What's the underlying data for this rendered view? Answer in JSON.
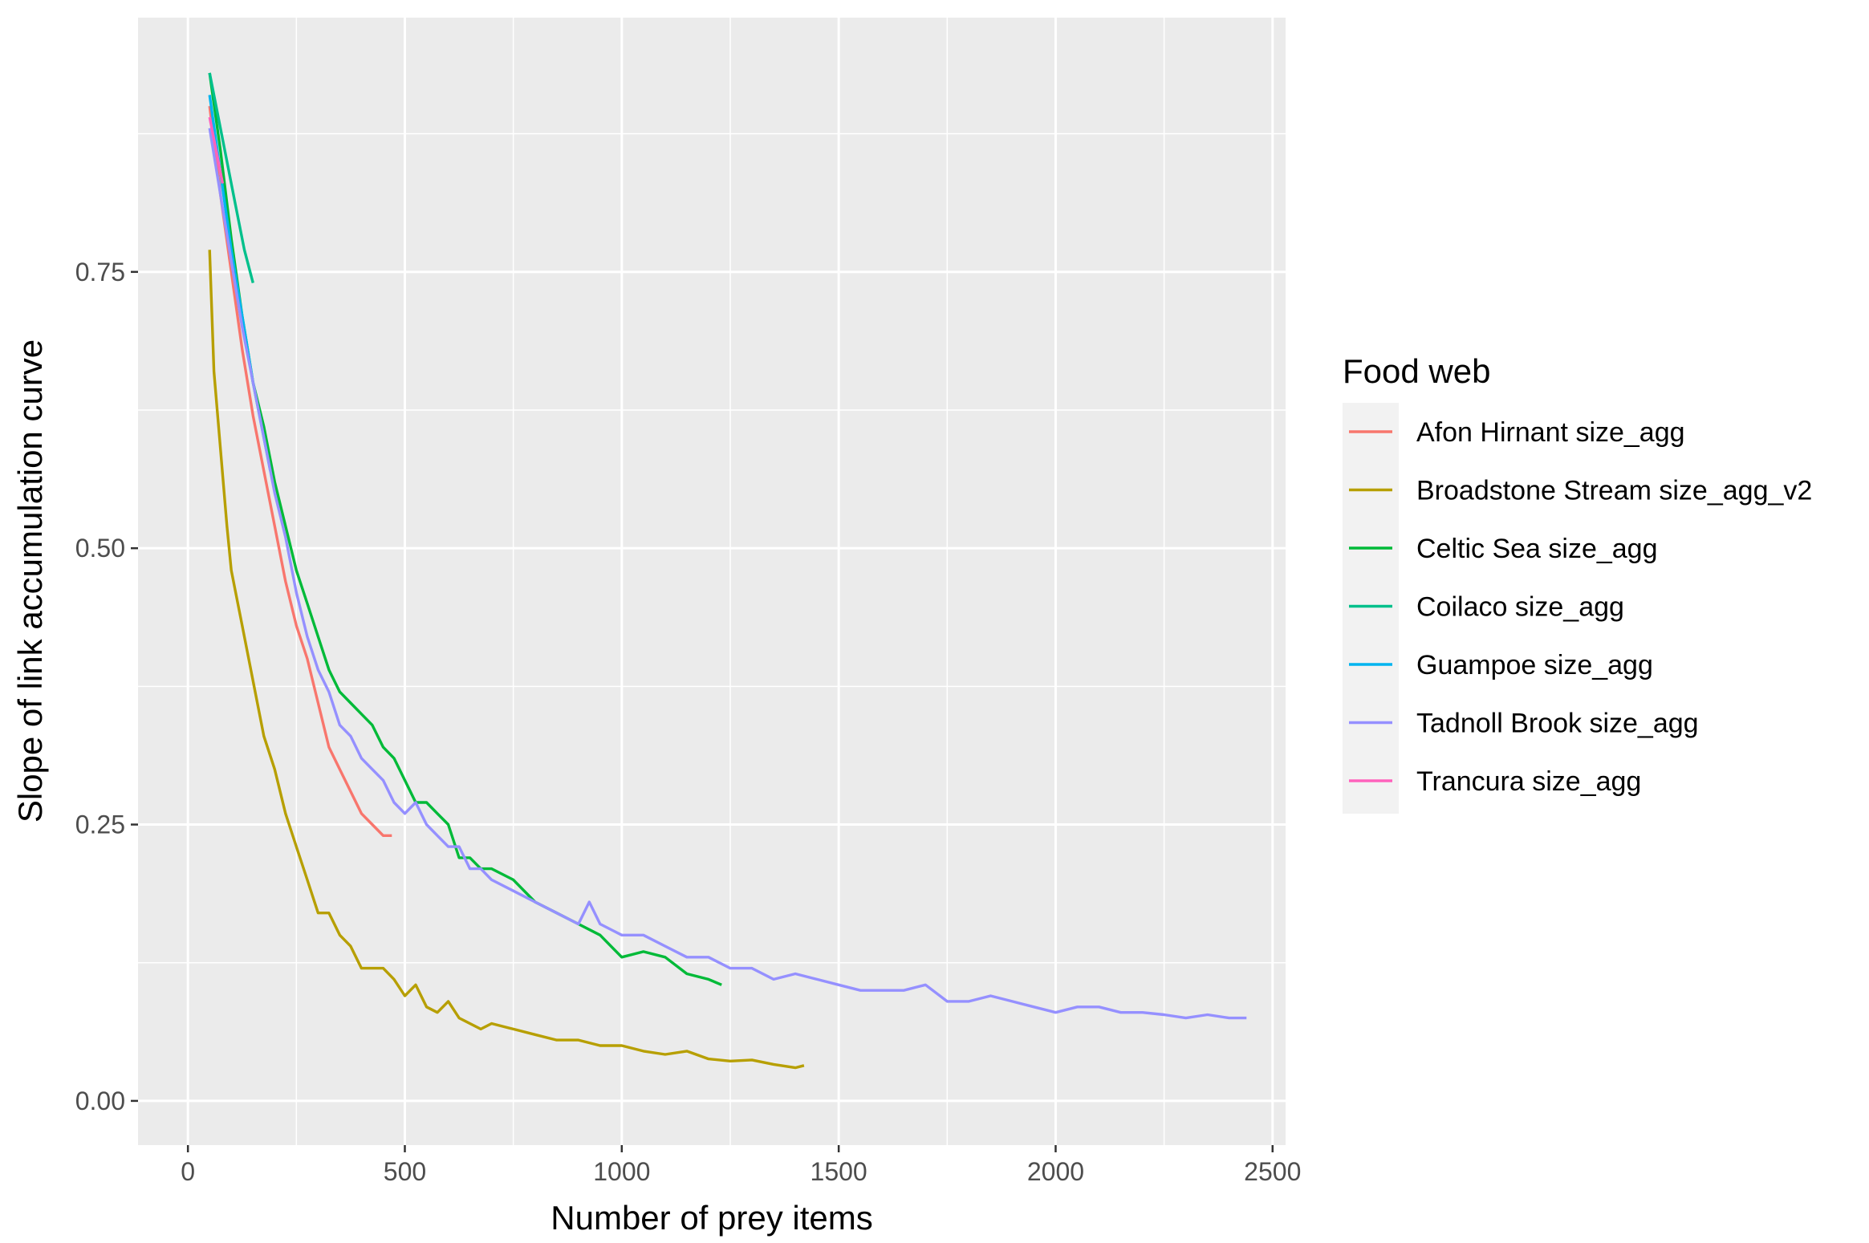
{
  "chart_data": {
    "type": "line",
    "xlabel": "Number of prey items",
    "ylabel": "Slope of link accumulation curve",
    "xlim": [
      -115,
      2530
    ],
    "ylim": [
      -0.04,
      0.98
    ],
    "x_ticks": [
      0,
      500,
      1000,
      1500,
      2000,
      2500
    ],
    "x_tick_labels": [
      "0",
      "500",
      "1000",
      "1500",
      "2000",
      "2500"
    ],
    "y_ticks": [
      0.0,
      0.25,
      0.5,
      0.75
    ],
    "y_tick_labels": [
      "0.00",
      "0.25",
      "0.50",
      "0.75"
    ],
    "grid": true,
    "legend": {
      "title": "Food web",
      "position": "right"
    },
    "series": [
      {
        "name": "Afon Hirnant size_agg",
        "color": "#F8766D",
        "x": [
          50,
          75,
          100,
          125,
          150,
          175,
          200,
          225,
          250,
          275,
          300,
          325,
          350,
          375,
          400,
          425,
          450,
          470
        ],
        "y": [
          0.9,
          0.82,
          0.75,
          0.68,
          0.62,
          0.57,
          0.52,
          0.47,
          0.43,
          0.4,
          0.36,
          0.32,
          0.3,
          0.28,
          0.26,
          0.25,
          0.24,
          0.24
        ]
      },
      {
        "name": "Broadstone Stream size_agg_v2",
        "color": "#B79F00",
        "x": [
          50,
          60,
          75,
          90,
          100,
          125,
          150,
          175,
          200,
          225,
          250,
          275,
          300,
          325,
          350,
          375,
          400,
          425,
          450,
          475,
          500,
          525,
          550,
          575,
          600,
          625,
          650,
          675,
          700,
          750,
          800,
          850,
          900,
          950,
          1000,
          1050,
          1100,
          1150,
          1200,
          1250,
          1300,
          1350,
          1400,
          1420
        ],
        "y": [
          0.77,
          0.66,
          0.59,
          0.52,
          0.48,
          0.43,
          0.38,
          0.33,
          0.3,
          0.26,
          0.23,
          0.2,
          0.17,
          0.17,
          0.15,
          0.14,
          0.12,
          0.12,
          0.12,
          0.11,
          0.095,
          0.105,
          0.085,
          0.08,
          0.09,
          0.075,
          0.07,
          0.065,
          0.07,
          0.065,
          0.06,
          0.055,
          0.055,
          0.05,
          0.05,
          0.045,
          0.042,
          0.045,
          0.038,
          0.036,
          0.037,
          0.033,
          0.03,
          0.032
        ]
      },
      {
        "name": "Celtic Sea size_agg",
        "color": "#00BA38",
        "x": [
          50,
          75,
          100,
          125,
          150,
          175,
          200,
          225,
          250,
          275,
          300,
          325,
          350,
          375,
          400,
          425,
          450,
          475,
          500,
          525,
          550,
          575,
          600,
          625,
          650,
          675,
          700,
          750,
          800,
          850,
          900,
          950,
          1000,
          1050,
          1100,
          1150,
          1200,
          1230
        ],
        "y": [
          0.93,
          0.86,
          0.78,
          0.71,
          0.65,
          0.61,
          0.56,
          0.52,
          0.48,
          0.45,
          0.42,
          0.39,
          0.37,
          0.36,
          0.35,
          0.34,
          0.32,
          0.31,
          0.29,
          0.27,
          0.27,
          0.26,
          0.25,
          0.22,
          0.22,
          0.21,
          0.21,
          0.2,
          0.18,
          0.17,
          0.16,
          0.15,
          0.13,
          0.135,
          0.13,
          0.115,
          0.11,
          0.105
        ]
      },
      {
        "name": "Coilaco size_agg",
        "color": "#00C08B",
        "x": [
          50,
          70,
          90,
          110,
          130,
          150
        ],
        "y": [
          0.93,
          0.89,
          0.85,
          0.81,
          0.77,
          0.74
        ]
      },
      {
        "name": "Guampoe size_agg",
        "color": "#00B4F0",
        "x": [
          50,
          75,
          100,
          125,
          150,
          175,
          190
        ],
        "y": [
          0.91,
          0.84,
          0.77,
          0.71,
          0.65,
          0.6,
          0.57
        ]
      },
      {
        "name": "Tadnoll Brook size_agg",
        "color": "#9590FF",
        "x": [
          50,
          75,
          100,
          125,
          150,
          175,
          200,
          225,
          250,
          275,
          300,
          325,
          350,
          375,
          400,
          425,
          450,
          475,
          500,
          525,
          550,
          575,
          600,
          625,
          650,
          675,
          700,
          750,
          800,
          850,
          900,
          925,
          950,
          1000,
          1050,
          1100,
          1150,
          1200,
          1250,
          1300,
          1350,
          1400,
          1450,
          1500,
          1550,
          1600,
          1650,
          1700,
          1750,
          1800,
          1850,
          1900,
          1950,
          2000,
          2050,
          2100,
          2150,
          2200,
          2250,
          2300,
          2350,
          2400,
          2440
        ],
        "y": [
          0.88,
          0.82,
          0.76,
          0.7,
          0.65,
          0.6,
          0.55,
          0.51,
          0.46,
          0.42,
          0.39,
          0.37,
          0.34,
          0.33,
          0.31,
          0.3,
          0.29,
          0.27,
          0.26,
          0.27,
          0.25,
          0.24,
          0.23,
          0.23,
          0.21,
          0.21,
          0.2,
          0.19,
          0.18,
          0.17,
          0.16,
          0.18,
          0.16,
          0.15,
          0.15,
          0.14,
          0.13,
          0.13,
          0.12,
          0.12,
          0.11,
          0.115,
          0.11,
          0.105,
          0.1,
          0.1,
          0.1,
          0.105,
          0.09,
          0.09,
          0.095,
          0.09,
          0.085,
          0.08,
          0.085,
          0.085,
          0.08,
          0.08,
          0.078,
          0.075,
          0.078,
          0.075,
          0.075
        ]
      },
      {
        "name": "Trancura size_agg",
        "color": "#FF62BC",
        "x": [
          50,
          60,
          70,
          80
        ],
        "y": [
          0.89,
          0.87,
          0.85,
          0.83
        ]
      }
    ]
  }
}
